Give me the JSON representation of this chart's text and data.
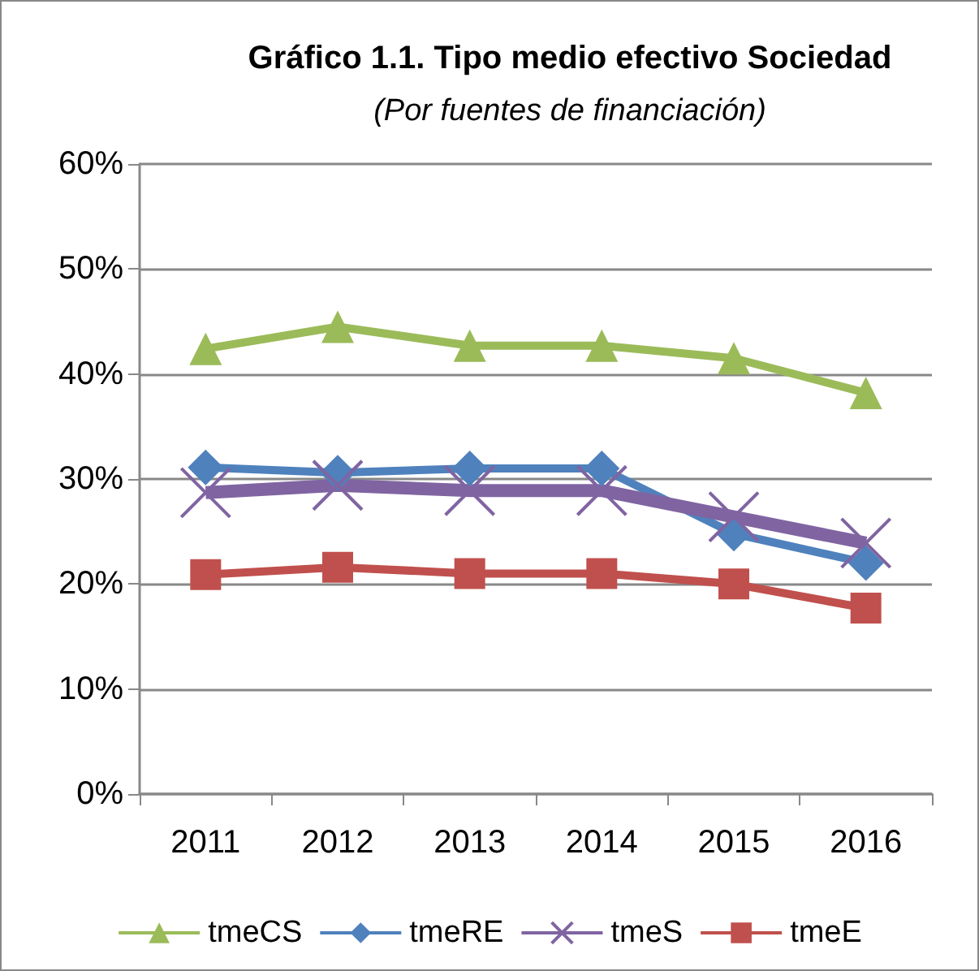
{
  "chart_data": {
    "type": "line",
    "title": "Gráfico 1.1. Tipo medio efectivo Sociedad",
    "subtitle": "(Por fuentes de financiación)",
    "categories": [
      "2011",
      "2012",
      "2013",
      "2014",
      "2015",
      "2016"
    ],
    "series": [
      {
        "name": "tmeCS",
        "color": "#9bbb59",
        "marker": "triangle",
        "values": [
          42.4,
          44.5,
          42.7,
          42.7,
          41.5,
          38.2
        ]
      },
      {
        "name": "tmeRE",
        "color": "#4f81bd",
        "marker": "diamond",
        "values": [
          31.1,
          30.6,
          31.0,
          31.0,
          24.8,
          22.0
        ]
      },
      {
        "name": "tmeS",
        "color": "#8064a2",
        "marker": "cross",
        "values": [
          28.7,
          29.4,
          28.9,
          28.9,
          26.4,
          23.9
        ]
      },
      {
        "name": "tmeE",
        "color": "#c0504d",
        "marker": "square",
        "values": [
          20.9,
          21.6,
          21.0,
          21.0,
          20.0,
          17.7
        ]
      }
    ],
    "ylim": [
      0,
      60
    ],
    "yticks": [
      {
        "value": 0,
        "label": "0%"
      },
      {
        "value": 10,
        "label": "10%"
      },
      {
        "value": 20,
        "label": "20%"
      },
      {
        "value": 30,
        "label": "30%"
      },
      {
        "value": 40,
        "label": "40%"
      },
      {
        "value": 50,
        "label": "50%"
      },
      {
        "value": 60,
        "label": "60%"
      }
    ],
    "grid": "y",
    "legend": "bottom"
  }
}
